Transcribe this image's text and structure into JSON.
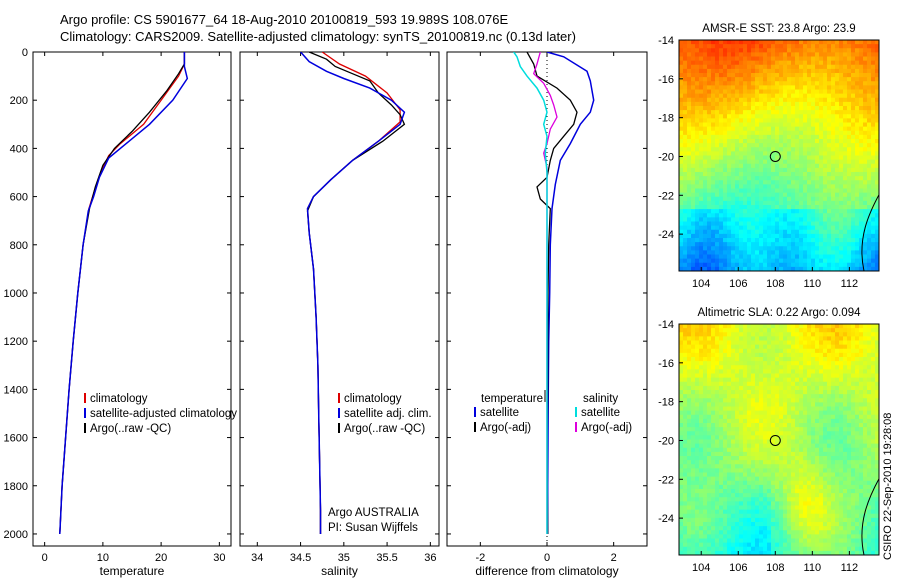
{
  "header": {
    "line1": "Argo profile: CS 5901677_64 18-Aug-2010 20100819_593 19.989S 108.076E",
    "line2": "Climatology: CARS2009. Satellite-adjusted climatology: synTS_20100819.nc (0.13d later)"
  },
  "side_label": "CSIRO 22-Sep-2010 19:28:08",
  "colors": {
    "red": "#dd0000",
    "blue": "#0000dd",
    "black": "#000000",
    "cyan": "#00dddd",
    "magenta": "#dd00dd"
  },
  "chart_data": [
    {
      "type": "line",
      "id": "temperature",
      "xlabel": "temperature",
      "xlim": [
        -2,
        32
      ],
      "ylim": [
        2050,
        0
      ],
      "xticks": [
        0,
        10,
        20,
        30
      ],
      "yticks": [
        0,
        200,
        400,
        600,
        800,
        1000,
        1200,
        1400,
        1600,
        1800,
        2000
      ],
      "legend": [
        "climatology",
        "satellite-adjusted climatology",
        "Argo(..raw -QC)"
      ],
      "series": [
        {
          "name": "climatology",
          "color": "red",
          "width": 1.3,
          "points": [
            [
              24,
              0
            ],
            [
              24,
              50
            ],
            [
              23,
              100
            ],
            [
              20,
              200
            ],
            [
              17,
              300
            ],
            [
              13,
              380
            ],
            [
              11,
              430
            ],
            [
              9.6,
              500
            ],
            [
              8.5,
              580
            ],
            [
              7.6,
              650
            ],
            [
              6.6,
              800
            ],
            [
              5.7,
              1000
            ],
            [
              4.9,
              1200
            ],
            [
              4.2,
              1400
            ],
            [
              3.6,
              1600
            ],
            [
              3.0,
              1800
            ],
            [
              2.6,
              2000
            ]
          ]
        },
        {
          "name": "Argo(..raw -QC)",
          "color": "black",
          "width": 1.3,
          "points": [
            [
              24,
              0
            ],
            [
              24,
              50
            ],
            [
              23,
              90
            ],
            [
              21,
              160
            ],
            [
              18,
              250
            ],
            [
              15,
              330
            ],
            [
              12,
              400
            ],
            [
              10,
              470
            ],
            [
              8.7,
              560
            ],
            [
              7.7,
              650
            ],
            [
              6.6,
              800
            ],
            [
              5.7,
              1000
            ],
            [
              4.9,
              1200
            ],
            [
              4.2,
              1400
            ],
            [
              3.6,
              1600
            ],
            [
              3.0,
              1800
            ],
            [
              2.6,
              2000
            ]
          ]
        },
        {
          "name": "satellite-adjusted climatology",
          "color": "blue",
          "width": 1.5,
          "points": [
            [
              24,
              0
            ],
            [
              24,
              60
            ],
            [
              24.5,
              110
            ],
            [
              22,
              200
            ],
            [
              18,
              300
            ],
            [
              14,
              380
            ],
            [
              11,
              440
            ],
            [
              9.4,
              520
            ],
            [
              8.4,
              600
            ],
            [
              7.5,
              660
            ],
            [
              6.6,
              800
            ],
            [
              5.7,
              1000
            ],
            [
              4.9,
              1200
            ],
            [
              4.2,
              1400
            ],
            [
              3.6,
              1600
            ],
            [
              3.0,
              1800
            ],
            [
              2.6,
              2000
            ]
          ]
        }
      ]
    },
    {
      "type": "line",
      "id": "salinity",
      "xlabel": "salinity",
      "xlim": [
        33.8,
        36.1
      ],
      "ylim": [
        2050,
        0
      ],
      "xticks": [
        34,
        34.5,
        35,
        35.5,
        36
      ],
      "yticks": [],
      "legend": [
        "climatology",
        "satellite adj. clim.",
        "Argo(..raw -QC)"
      ],
      "annotation": [
        "Argo AUSTRALIA",
        "PI: Susan Wijffels"
      ],
      "series": [
        {
          "name": "climatology",
          "color": "red",
          "width": 1.3,
          "points": [
            [
              34.75,
              0
            ],
            [
              34.95,
              50
            ],
            [
              35.25,
              100
            ],
            [
              35.5,
              170
            ],
            [
              35.65,
              240
            ],
            [
              35.65,
              290
            ],
            [
              35.4,
              370
            ],
            [
              35.1,
              450
            ],
            [
              34.85,
              530
            ],
            [
              34.65,
              600
            ],
            [
              34.58,
              650
            ],
            [
              34.6,
              750
            ],
            [
              34.65,
              900
            ],
            [
              34.68,
              1100
            ],
            [
              34.7,
              1300
            ],
            [
              34.71,
              1500
            ],
            [
              34.72,
              1700
            ],
            [
              34.73,
              1900
            ],
            [
              34.73,
              2000
            ]
          ]
        },
        {
          "name": "Argo(..raw -QC)",
          "color": "black",
          "width": 1.3,
          "points": [
            [
              34.6,
              0
            ],
            [
              34.8,
              30
            ],
            [
              34.9,
              60
            ],
            [
              35.1,
              90
            ],
            [
              35.3,
              120
            ],
            [
              35.4,
              170
            ],
            [
              35.55,
              220
            ],
            [
              35.65,
              260
            ],
            [
              35.7,
              300
            ],
            [
              35.45,
              370
            ],
            [
              35.1,
              450
            ],
            [
              34.85,
              530
            ],
            [
              34.65,
              600
            ],
            [
              34.58,
              660
            ],
            [
              34.6,
              750
            ],
            [
              34.65,
              900
            ],
            [
              34.68,
              1100
            ],
            [
              34.7,
              1300
            ],
            [
              34.71,
              1500
            ],
            [
              34.72,
              1700
            ],
            [
              34.73,
              1900
            ],
            [
              34.73,
              2000
            ]
          ]
        },
        {
          "name": "satellite adj. clim.",
          "color": "blue",
          "width": 1.5,
          "points": [
            [
              34.5,
              0
            ],
            [
              34.6,
              40
            ],
            [
              34.8,
              80
            ],
            [
              35.0,
              110
            ],
            [
              35.3,
              150
            ],
            [
              35.55,
              200
            ],
            [
              35.7,
              250
            ],
            [
              35.65,
              300
            ],
            [
              35.4,
              370
            ],
            [
              35.1,
              450
            ],
            [
              34.85,
              530
            ],
            [
              34.65,
              600
            ],
            [
              34.58,
              650
            ],
            [
              34.6,
              750
            ],
            [
              34.65,
              900
            ],
            [
              34.68,
              1100
            ],
            [
              34.7,
              1300
            ],
            [
              34.71,
              1500
            ],
            [
              34.72,
              1700
            ],
            [
              34.73,
              1900
            ],
            [
              34.73,
              2000
            ]
          ]
        }
      ]
    },
    {
      "type": "line",
      "id": "difference",
      "xlabel": "difference from climatology",
      "xlim": [
        -3,
        3
      ],
      "ylim": [
        2050,
        0
      ],
      "xticks": [
        -2,
        0,
        2
      ],
      "yticks": [],
      "legend_temperature_heading": "temperature",
      "legend_salinity_heading": "salinity",
      "legend_temperature": [
        "satellite",
        "Argo(-adj)"
      ],
      "legend_salinity": [
        "satellite",
        "Argo(-adj)"
      ],
      "series": [
        {
          "name": "temperature satellite",
          "color": "blue",
          "width": 1.5,
          "points": [
            [
              0,
              0
            ],
            [
              0.5,
              20
            ],
            [
              1.2,
              80
            ],
            [
              1.3,
              120
            ],
            [
              1.4,
              200
            ],
            [
              1.3,
              250
            ],
            [
              1.0,
              300
            ],
            [
              0.7,
              380
            ],
            [
              0.4,
              450
            ],
            [
              0.25,
              550
            ],
            [
              0.15,
              650
            ],
            [
              0.1,
              800
            ],
            [
              0.08,
              1000
            ],
            [
              0.05,
              1200
            ],
            [
              0.04,
              1400
            ],
            [
              0.03,
              1600
            ],
            [
              0.02,
              1800
            ],
            [
              0.02,
              2000
            ]
          ]
        },
        {
          "name": "temperature Argo(-adj)",
          "color": "black",
          "width": 1.3,
          "points": [
            [
              -0.6,
              0
            ],
            [
              -0.4,
              50
            ],
            [
              -0.3,
              100
            ],
            [
              0.3,
              150
            ],
            [
              0.7,
              200
            ],
            [
              0.9,
              250
            ],
            [
              0.8,
              300
            ],
            [
              0.5,
              350
            ],
            [
              0.2,
              400
            ],
            [
              0.1,
              450
            ],
            [
              0,
              520
            ],
            [
              -0.3,
              560
            ],
            [
              -0.2,
              610
            ],
            [
              0.1,
              650
            ],
            [
              0.05,
              800
            ],
            [
              0.03,
              1000
            ],
            [
              0.02,
              1200
            ],
            [
              0.02,
              1400
            ],
            [
              0.01,
              1600
            ],
            [
              0.01,
              1800
            ],
            [
              0.02,
              2000
            ]
          ]
        },
        {
          "name": "salinity Argo(-adj)",
          "color": "magenta",
          "width": 1.3,
          "points": [
            [
              -0.2,
              0
            ],
            [
              -0.3,
              50
            ],
            [
              -0.4,
              90
            ],
            [
              -0.1,
              130
            ],
            [
              0.1,
              180
            ],
            [
              0.2,
              220
            ],
            [
              0.3,
              270
            ],
            [
              0.1,
              320
            ],
            [
              0,
              380
            ],
            [
              -0.1,
              420
            ],
            [
              0,
              480
            ],
            [
              0,
              550
            ],
            [
              0,
              650
            ],
            [
              0,
              1000
            ],
            [
              0,
              2000
            ]
          ]
        },
        {
          "name": "salinity satellite",
          "color": "cyan",
          "width": 1.5,
          "points": [
            [
              -1.0,
              0
            ],
            [
              -0.9,
              20
            ],
            [
              -0.8,
              60
            ],
            [
              -0.6,
              100
            ],
            [
              -0.3,
              150
            ],
            [
              -0.1,
              200
            ],
            [
              0,
              250
            ],
            [
              -0.1,
              300
            ],
            [
              0,
              350
            ],
            [
              -0.05,
              420
            ],
            [
              0,
              500
            ],
            [
              0,
              600
            ],
            [
              0,
              800
            ],
            [
              0,
              1000
            ],
            [
              0,
              1500
            ],
            [
              0,
              2000
            ]
          ]
        }
      ]
    },
    {
      "type": "heatmap",
      "id": "sst",
      "title": "AMSR-E SST: 23.8 Argo: 23.9",
      "xlim": [
        102.8,
        113.6
      ],
      "ylim": [
        -25.9,
        -14
      ],
      "xticks": [
        104,
        106,
        108,
        110,
        112
      ],
      "yticks": [
        -14,
        -16,
        -18,
        -20,
        -22,
        -24
      ],
      "marker": [
        108,
        -20
      ]
    },
    {
      "type": "heatmap",
      "id": "sla",
      "title": "Altimetric SLA: 0.22 Argo: 0.094",
      "xlim": [
        102.8,
        113.6
      ],
      "ylim": [
        -25.9,
        -14
      ],
      "xticks": [
        104,
        106,
        108,
        110,
        112
      ],
      "yticks": [
        -14,
        -16,
        -18,
        -20,
        -22,
        -24
      ],
      "marker": [
        108,
        -20
      ]
    }
  ]
}
